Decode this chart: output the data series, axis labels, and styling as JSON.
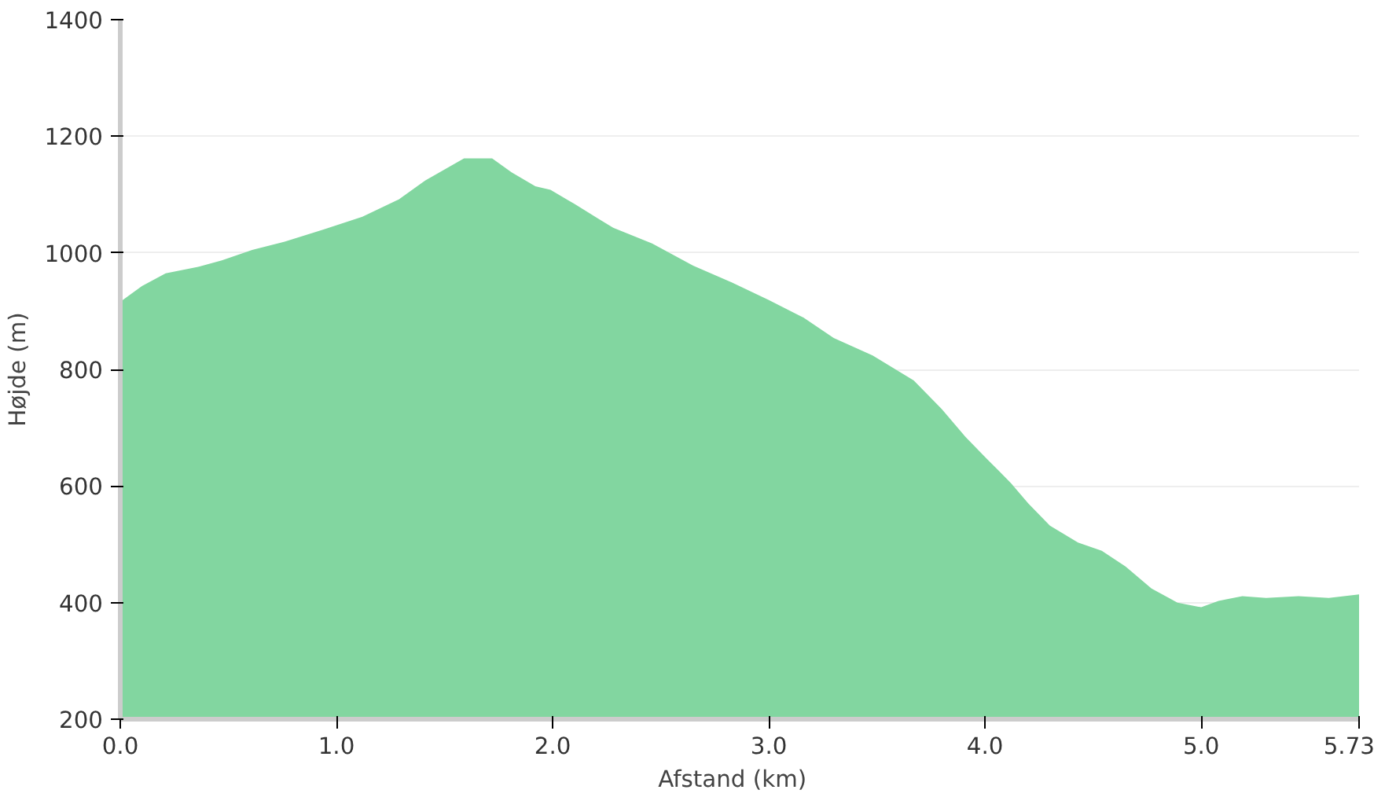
{
  "chart_data": {
    "type": "area",
    "xlabel": "Afstand   (km)",
    "ylabel": "Højde (m)",
    "xlim": [
      0,
      5.73
    ],
    "ylim": [
      200,
      1400
    ],
    "xticks": [
      {
        "value": 0,
        "label": "0.0"
      },
      {
        "value": 1,
        "label": "1.0"
      },
      {
        "value": 2,
        "label": "2.0"
      },
      {
        "value": 3,
        "label": "3.0"
      },
      {
        "value": 4,
        "label": "4.0"
      },
      {
        "value": 5,
        "label": "5.0"
      },
      5.73
    ],
    "yticks": [
      200,
      400,
      600,
      800,
      1000,
      1200,
      1400
    ],
    "grid": "y",
    "series": [
      {
        "color": "#82d6a0",
        "x": [
          0,
          0.1,
          0.21,
          0.36,
          0.47,
          0.61,
          0.76,
          0.94,
          1.12,
          1.29,
          1.41,
          1.59,
          1.72,
          1.81,
          1.92,
          1.99,
          2.1,
          2.28,
          2.46,
          2.65,
          2.83,
          3.0,
          3.16,
          3.3,
          3.48,
          3.67,
          3.8,
          3.91,
          4.01,
          4.12,
          4.2,
          4.3,
          4.43,
          4.54,
          4.65,
          4.77,
          4.89,
          5.0,
          5.08,
          5.19,
          5.3,
          5.45,
          5.59,
          5.73
        ],
        "values": [
          916,
          943,
          965,
          976,
          987,
          1005,
          1019,
          1040,
          1062,
          1092,
          1124,
          1162,
          1162,
          1138,
          1114,
          1108,
          1084,
          1043,
          1016,
          978,
          949,
          919,
          889,
          854,
          824,
          781,
          732,
          684,
          646,
          605,
          570,
          532,
          503,
          489,
          462,
          424,
          400,
          392,
          403,
          411,
          408,
          411,
          408,
          414
        ]
      }
    ]
  }
}
